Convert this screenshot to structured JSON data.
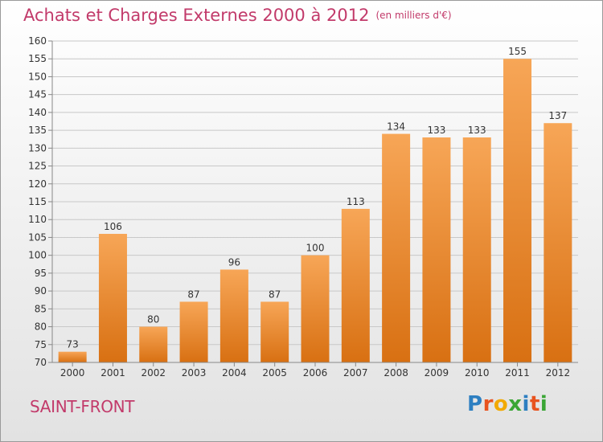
{
  "title": "Achats et Charges Externes 2000 à 2012",
  "subtitle": "(en milliers d'€)",
  "location": "SAINT-FRONT",
  "brand": {
    "letters": [
      "P",
      "r",
      "o",
      "x",
      "i",
      "t",
      "i"
    ],
    "colors": [
      "#2d7fc1",
      "#e8531f",
      "#f2a900",
      "#3aa635",
      "#2d7fc1",
      "#e8531f",
      "#3aa635"
    ]
  },
  "colors": {
    "title": "#c23a6a",
    "bar_top": "#f7a657",
    "bar_bottom": "#d87012",
    "grid": "#c8c8c8",
    "axis": "#888888"
  },
  "chart_data": {
    "type": "bar",
    "categories": [
      "2000",
      "2001",
      "2002",
      "2003",
      "2004",
      "2005",
      "2006",
      "2007",
      "2008",
      "2009",
      "2010",
      "2011",
      "2012"
    ],
    "values": [
      73,
      106,
      80,
      87,
      96,
      87,
      100,
      113,
      134,
      133,
      133,
      155,
      137
    ],
    "ylim": [
      70,
      160
    ],
    "yticks": [
      70,
      75,
      80,
      85,
      90,
      95,
      100,
      105,
      110,
      115,
      120,
      125,
      130,
      135,
      140,
      145,
      150,
      155,
      160
    ],
    "grid": true,
    "data_labels": true
  }
}
